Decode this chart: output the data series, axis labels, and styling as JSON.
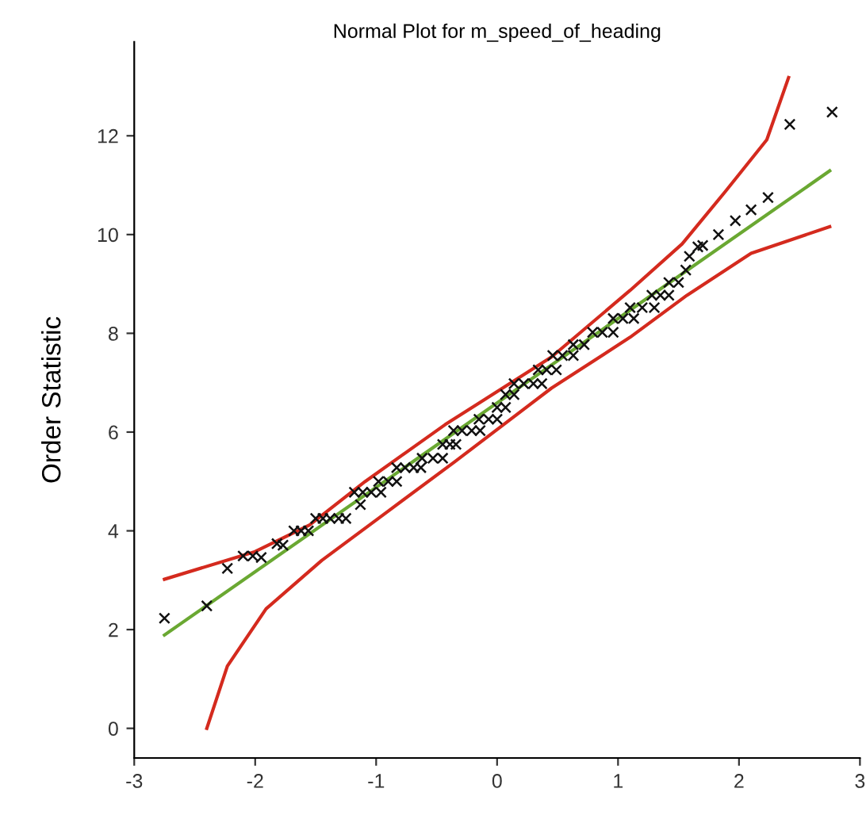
{
  "chart_data": {
    "type": "scatter",
    "title": "Normal Plot for m_speed_of_heading",
    "ylabel": "Order Statistic",
    "xlim": [
      -3,
      3
    ],
    "xticks": [
      -3,
      -2,
      -1,
      0,
      1,
      2,
      3
    ],
    "ylim": [
      -0.6,
      13.9
    ],
    "yticks": [
      0,
      2,
      4,
      6,
      8,
      10,
      12
    ],
    "grid": false,
    "legend": false,
    "series": [
      {
        "type": "line",
        "color": "#d42a1e",
        "x": [
          -2.75,
          -2.0,
          -1.55,
          -1.09,
          -0.43,
          0.45,
          1.1,
          1.53,
          1.89,
          2.23,
          2.41
        ],
        "values": [
          3.02,
          3.58,
          4.12,
          5.0,
          6.15,
          7.52,
          8.87,
          9.81,
          10.88,
          11.92,
          13.18
        ]
      },
      {
        "type": "line",
        "color": "#d42a1e",
        "x": [
          -2.4,
          -2.23,
          -1.91,
          -1.45,
          -0.9,
          -0.35,
          0.45,
          1.1,
          1.57,
          2.1,
          2.75
        ],
        "values": [
          0,
          1.26,
          2.42,
          3.4,
          4.4,
          5.4,
          6.89,
          7.92,
          8.77,
          9.62,
          10.16
        ]
      },
      {
        "type": "line",
        "color": "#6aa832",
        "x": [
          -2.75,
          2.75
        ],
        "values": [
          1.89,
          11.29
        ]
      },
      {
        "color": "#111111",
        "marker": "cross",
        "x": [
          -2.75,
          -2.4,
          -2.23,
          -2.1,
          -2.02,
          -1.95,
          -1.82,
          -1.77,
          -1.68,
          -1.62,
          -1.56,
          -1.5,
          -1.44,
          -1.38,
          -1.31,
          -1.25,
          -1.13,
          -1.18,
          -1.11,
          -1.04,
          -0.96,
          -0.98,
          -0.9,
          -0.83,
          -0.83,
          -0.76,
          -0.69,
          -0.63,
          -0.62,
          -0.53,
          -0.45,
          -0.45,
          -0.39,
          -0.34,
          -0.36,
          -0.29,
          -0.21,
          -0.14,
          -0.15,
          -0.07,
          0.0,
          0.0,
          0.07,
          0.07,
          0.14,
          0.14,
          0.22,
          0.3,
          0.37,
          0.34,
          0.41,
          0.49,
          0.46,
          0.54,
          0.63,
          0.63,
          0.72,
          0.79,
          0.87,
          0.96,
          0.96,
          1.04,
          1.13,
          1.1,
          1.2,
          1.3,
          1.28,
          1.35,
          1.42,
          1.42,
          1.5,
          1.56,
          1.59,
          1.66,
          1.7,
          1.83,
          1.97,
          2.1,
          2.24,
          2.42,
          2.77
        ],
        "values": [
          2.23,
          2.48,
          3.24,
          3.49,
          3.49,
          3.46,
          3.74,
          3.71,
          4.0,
          4.0,
          4.0,
          4.25,
          4.25,
          4.25,
          4.25,
          4.25,
          4.53,
          4.78,
          4.78,
          4.78,
          4.78,
          5.0,
          5.0,
          5.0,
          5.28,
          5.28,
          5.28,
          5.28,
          5.47,
          5.47,
          5.47,
          5.75,
          5.75,
          5.75,
          6.03,
          6.03,
          6.03,
          6.03,
          6.26,
          6.26,
          6.26,
          6.5,
          6.5,
          6.76,
          6.76,
          6.98,
          6.98,
          6.98,
          6.98,
          7.26,
          7.26,
          7.26,
          7.55,
          7.55,
          7.55,
          7.77,
          7.77,
          8.02,
          8.02,
          8.02,
          8.3,
          8.3,
          8.3,
          8.52,
          8.52,
          8.52,
          8.77,
          8.77,
          8.77,
          9.03,
          9.03,
          9.28,
          9.56,
          9.75,
          9.78,
          10.0,
          10.28,
          10.5,
          10.75,
          12.23,
          12.48
        ]
      }
    ]
  }
}
